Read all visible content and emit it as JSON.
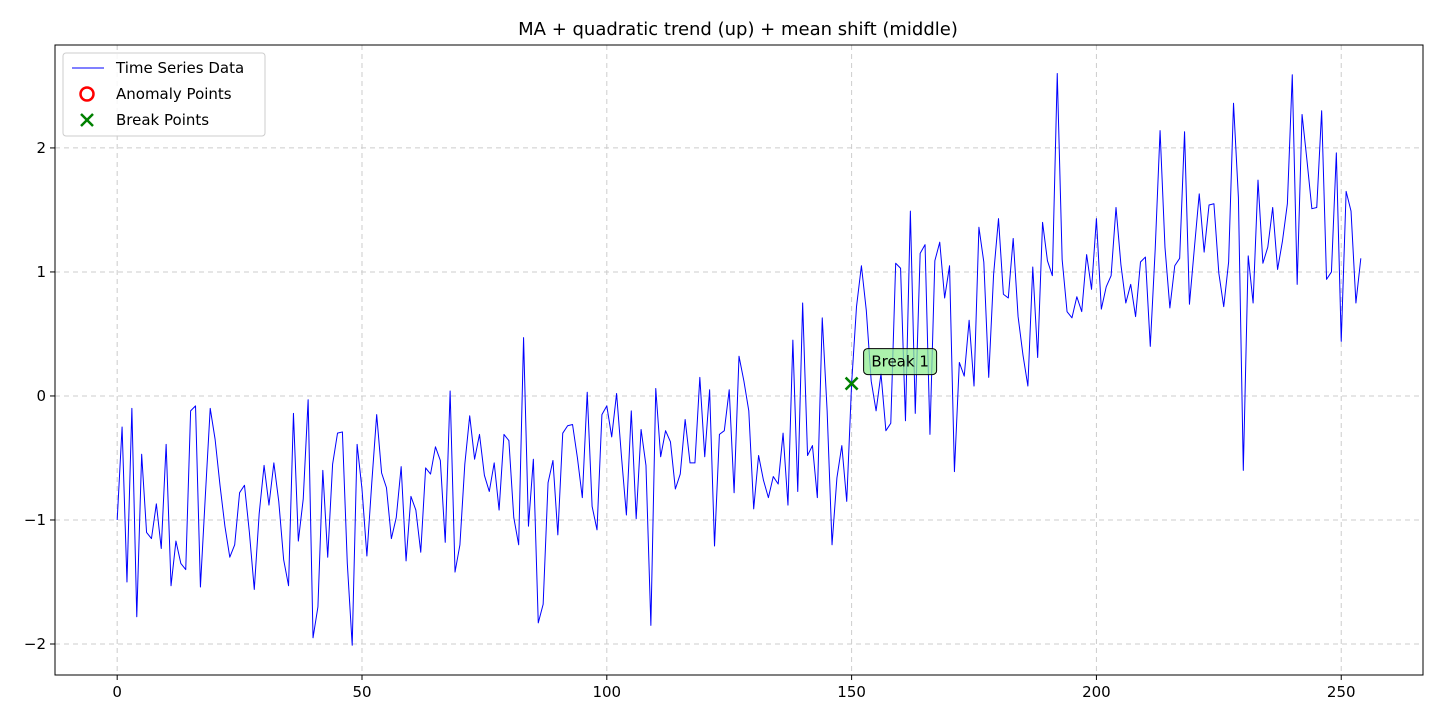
{
  "chart_data": {
    "type": "line",
    "title": "MA + quadratic trend (up) + mean shift (middle)",
    "xlabel": "",
    "ylabel": "",
    "xlim": [
      -12.7,
      266.7
    ],
    "ylim": [
      -2.25,
      2.83
    ],
    "xticks": [
      0,
      50,
      100,
      150,
      200,
      250
    ],
    "yticks": [
      -2,
      -1,
      0,
      1,
      2
    ],
    "xtick_labels": [
      "0",
      "50",
      "100",
      "150",
      "200",
      "250"
    ],
    "ytick_labels": [
      "−2",
      "−1",
      "0",
      "1",
      "2"
    ],
    "grid": true,
    "legend_position": "upper-left",
    "legend": [
      {
        "label": "Time Series Data",
        "marker": "line",
        "color": "#0000ff"
      },
      {
        "label": "Anomaly Points",
        "marker": "circle",
        "color": "#ff0000"
      },
      {
        "label": "Break Points",
        "marker": "x",
        "color": "#008000"
      }
    ],
    "series": [
      {
        "name": "Time Series Data",
        "color": "#0000ff",
        "x_start": 0,
        "x_step": 1,
        "values": [
          -1.0,
          -0.25,
          -1.5,
          -0.1,
          -1.78,
          -0.47,
          -1.1,
          -1.15,
          -0.87,
          -1.23,
          -0.39,
          -1.53,
          -1.17,
          -1.35,
          -1.4,
          -0.12,
          -0.08,
          -1.54,
          -0.81,
          -0.1,
          -0.35,
          -0.72,
          -1.05,
          -1.3,
          -1.2,
          -0.78,
          -0.72,
          -1.1,
          -1.56,
          -0.95,
          -0.56,
          -0.88,
          -0.54,
          -0.85,
          -1.32,
          -1.53,
          -0.14,
          -1.17,
          -0.83,
          -0.03,
          -1.95,
          -1.7,
          -0.6,
          -1.3,
          -0.55,
          -0.3,
          -0.29,
          -1.35,
          -2.01,
          -0.39,
          -0.75,
          -1.29,
          -0.7,
          -0.15,
          -0.62,
          -0.74,
          -1.15,
          -0.98,
          -0.57,
          -1.33,
          -0.81,
          -0.92,
          -1.26,
          -0.58,
          -0.63,
          -0.41,
          -0.52,
          -1.18,
          0.04,
          -1.42,
          -1.2,
          -0.55,
          -0.16,
          -0.51,
          -0.31,
          -0.64,
          -0.77,
          -0.54,
          -0.92,
          -0.31,
          -0.36,
          -0.98,
          -1.2,
          0.47,
          -1.05,
          -0.51,
          -1.83,
          -1.68,
          -0.7,
          -0.52,
          -1.12,
          -0.3,
          -0.24,
          -0.23,
          -0.5,
          -0.82,
          0.03,
          -0.89,
          -1.08,
          -0.15,
          -0.08,
          -0.33,
          0.02,
          -0.49,
          -0.96,
          -0.12,
          -0.99,
          -0.27,
          -0.56,
          -1.85,
          0.06,
          -0.49,
          -0.28,
          -0.37,
          -0.75,
          -0.63,
          -0.19,
          -0.54,
          -0.54,
          0.15,
          -0.49,
          0.05,
          -1.21,
          -0.31,
          -0.28,
          0.05,
          -0.78,
          0.32,
          0.12,
          -0.12,
          -0.91,
          -0.48,
          -0.68,
          -0.82,
          -0.65,
          -0.71,
          -0.3,
          -0.88,
          0.45,
          -0.77,
          0.75,
          -0.48,
          -0.4,
          -0.82,
          0.63,
          -0.12,
          -1.2,
          -0.66,
          -0.4,
          -0.85,
          0.1,
          0.72,
          1.05,
          0.69,
          0.12,
          -0.12,
          0.18,
          -0.28,
          -0.22,
          1.07,
          1.03,
          -0.2,
          1.49,
          -0.14,
          1.15,
          1.22,
          -0.31,
          1.09,
          1.24,
          0.79,
          1.05,
          -0.61,
          0.27,
          0.16,
          0.61,
          0.08,
          1.36,
          1.08,
          0.15,
          0.98,
          1.43,
          0.82,
          0.79,
          1.27,
          0.64,
          0.33,
          0.08,
          1.04,
          0.31,
          1.4,
          1.09,
          0.97,
          2.6,
          1.1,
          0.68,
          0.63,
          0.8,
          0.68,
          1.14,
          0.86,
          1.43,
          0.7,
          0.88,
          0.97,
          1.52,
          1.06,
          0.75,
          0.9,
          0.64,
          1.08,
          1.12,
          0.4,
          1.18,
          2.14,
          1.2,
          0.71,
          1.05,
          1.11,
          2.13,
          0.74,
          1.19,
          1.63,
          1.16,
          1.54,
          1.55,
          0.99,
          0.72,
          1.08,
          2.36,
          1.6,
          -0.6,
          1.13,
          0.75,
          1.74,
          1.07,
          1.2,
          1.52,
          1.02,
          1.25,
          1.55,
          2.59,
          0.9,
          2.27,
          1.9,
          1.51,
          1.52,
          2.3,
          0.94,
          1.0,
          1.96,
          0.44,
          1.65,
          1.49,
          0.75,
          1.11
        ]
      }
    ],
    "break_points": [
      {
        "x": 150,
        "y": 0.1,
        "label": "Break 1"
      }
    ],
    "anomaly_points": []
  }
}
